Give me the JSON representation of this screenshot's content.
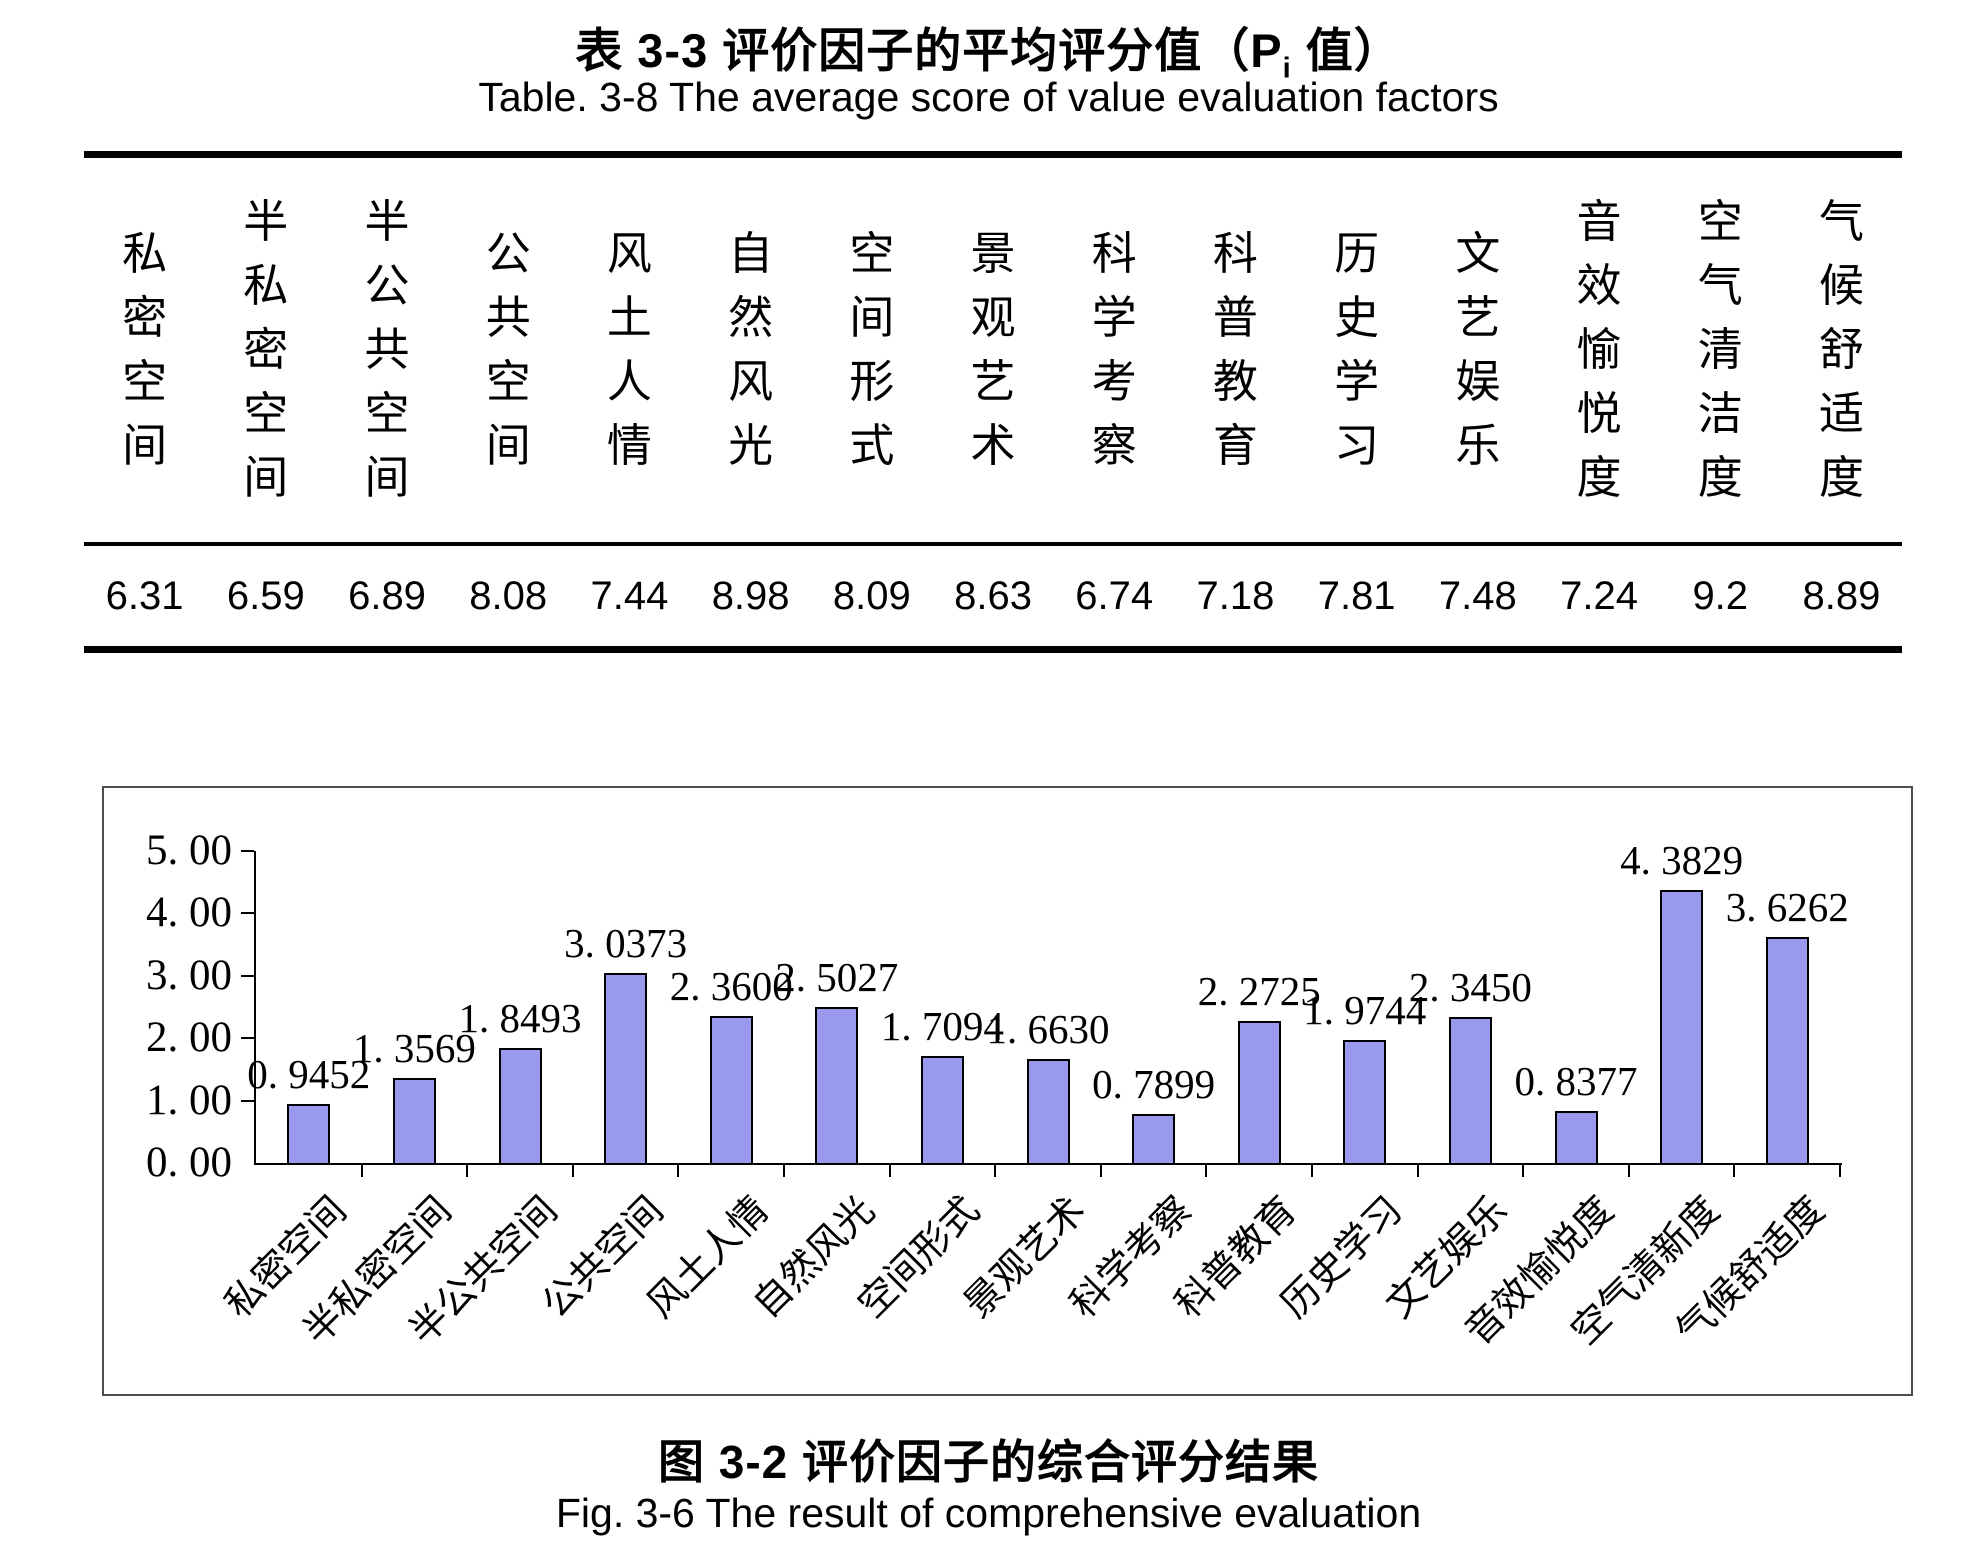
{
  "titles": {
    "table_zh_prefix": "表 3-3 评价因子的平均评分值（P",
    "table_zh_sub": "i",
    "table_zh_suffix": " 值）",
    "table_en": "Table. 3-8 The average score of value evaluation factors",
    "fig_zh": "图 3-2 评价因子的综合评分结果",
    "fig_en": "Fig. 3-6 The result of comprehensive evaluation"
  },
  "table": {
    "columns": [
      {
        "header": "私密空间",
        "value": "6.31"
      },
      {
        "header": "半私密空间",
        "value": "6.59"
      },
      {
        "header": "半公共空间",
        "value": "6.89"
      },
      {
        "header": "公共空间",
        "value": "8.08"
      },
      {
        "header": "风土人情",
        "value": "7.44"
      },
      {
        "header": "自然风光",
        "value": "8.98"
      },
      {
        "header": "空间形式",
        "value": "8.09"
      },
      {
        "header": "景观艺术",
        "value": "8.63"
      },
      {
        "header": "科学考察",
        "value": "6.74"
      },
      {
        "header": "科普教育",
        "value": "7.18"
      },
      {
        "header": "历史学习",
        "value": "7.81"
      },
      {
        "header": "文艺娱乐",
        "value": "7.48"
      },
      {
        "header": "音效愉悦度",
        "value": "7.24"
      },
      {
        "header": "空气清洁度",
        "value": "9.2"
      },
      {
        "header": "气候舒适度",
        "value": "8.89"
      }
    ]
  },
  "chart_data": {
    "type": "bar",
    "title": "图 3-2 评价因子的综合评分结果",
    "categories": [
      "私密空间",
      "半私密空间",
      "半公共空间",
      "公共空间",
      "风土人情",
      "自然风光",
      "空间形式",
      "景观艺术",
      "科学考察",
      "科普教育",
      "历史学习",
      "文艺娱乐",
      "音效愉悦度",
      "空气清新度",
      "气候舒适度"
    ],
    "values": [
      0.9452,
      1.3569,
      1.8493,
      3.0373,
      2.36,
      2.5027,
      1.7094,
      1.663,
      0.7899,
      2.2725,
      1.9744,
      2.345,
      0.8377,
      4.3829,
      3.6262
    ],
    "value_labels": [
      "0. 9452",
      "1. 3569",
      "1. 8493",
      "3. 0373",
      "2. 3600",
      "2. 5027",
      "1. 7094",
      "1. 6630",
      "0. 7899",
      "2. 2725",
      "1. 9744",
      "2. 3450",
      "0. 8377",
      "4. 3829",
      "3. 6262"
    ],
    "y_tick_labels": [
      "0. 00",
      "1. 00",
      "2. 00",
      "3. 00",
      "4. 00",
      "5. 00"
    ],
    "ylim": [
      0,
      5
    ],
    "xlabel": "",
    "ylabel": "",
    "grid": false,
    "legend": "none",
    "bar_fill": "#9999EE",
    "bar_stroke": "#000000",
    "axis_color": "#000000",
    "frame_color": "#4D4D4D"
  }
}
